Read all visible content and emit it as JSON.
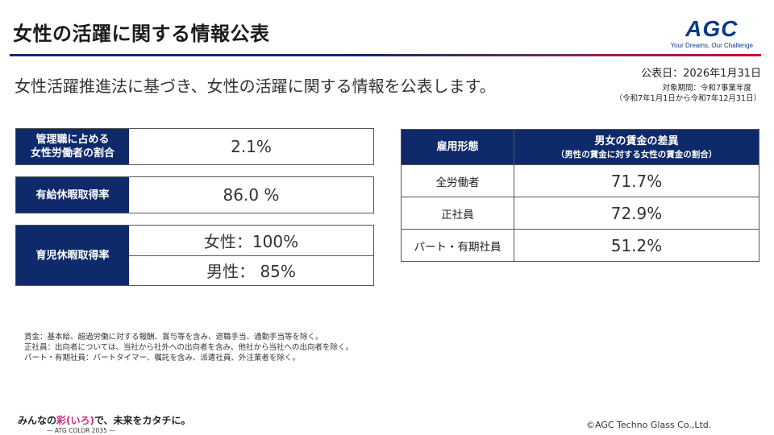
{
  "header": {
    "title": "女性の活躍に関する情報公表",
    "logo_mark": "AGC",
    "logo_tagline": "Your Dreams, Our Challenge"
  },
  "lead_text": "女性活躍推進法に基づき、女性の活躍に関する情報を公表します。",
  "publication": {
    "date": "公表日：2026年1月31日",
    "period_label": "対象期間：令和7事業年度",
    "period_range": "（令和7年1月1日から令和7年12月31日）"
  },
  "kpis": {
    "managers": {
      "label_line1": "管理職に占める",
      "label_line2": "女性労働者の割合",
      "value": "2.1%"
    },
    "paid_leave": {
      "label": "有給休暇取得率",
      "value": "86.0 %"
    },
    "childcare": {
      "label": "育児休暇取得率",
      "female": "女性：100%",
      "male": "男性： 85%"
    }
  },
  "wage_gap": {
    "header_category": "雇用形態",
    "header_title": "男女の賃金の差異",
    "header_subtitle": "（男性の賃金に対する女性の賃金の割合）",
    "rows": [
      {
        "category": "全労働者",
        "value": "71.7%"
      },
      {
        "category": "正社員",
        "value": "72.9%"
      },
      {
        "category": "パート・有期社員",
        "value": "51.2%"
      }
    ]
  },
  "notes": [
    "賃金：基本給、超過労働に対する報酬、賞与等を含み、退職手当、通勤手当等を除く。",
    "正社員：出向者については、当社から社外への出向者を含み、他社から当社への出向者を除く。",
    "パート・有期社員：パートタイマー、嘱託を含み、派遣社員、外注業者を除く。"
  ],
  "footer": {
    "slogan_pre": "みんなの",
    "slogan_accent": "彩(いろ)",
    "slogan_post": "で、未来をカタチに。",
    "slogan_sub": "— ATG COLOR 2035 —",
    "copyright": "©AGC Techno Glass Co.,Ltd."
  },
  "colors": {
    "primary_navy": "#0f2a6b",
    "accent_red": "#c8102e",
    "accent_pink": "#d2267f"
  }
}
